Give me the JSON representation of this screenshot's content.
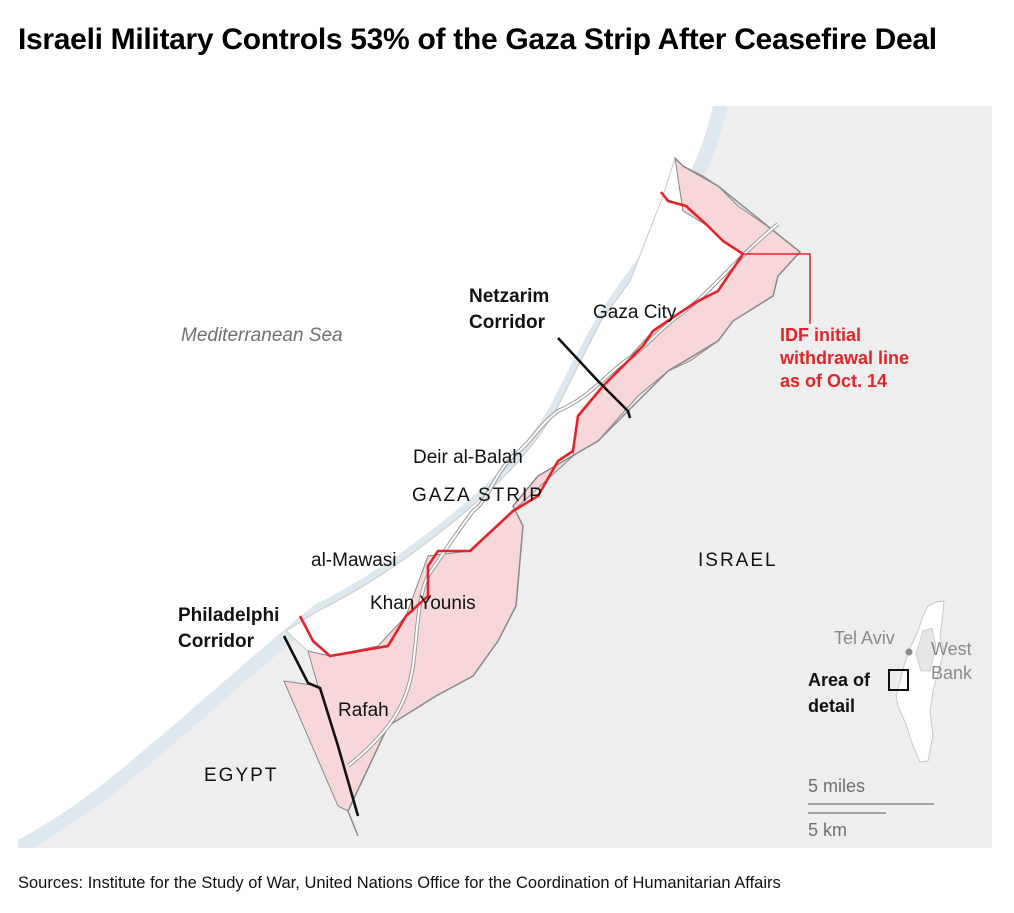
{
  "title": "Israeli Military Controls 53% of the Gaza Strip After Ceasefire Deal",
  "sources": "Sources: Institute for the Study of War, United Nations Office for the Coordination of Humanitarian Affairs",
  "labels": {
    "sea": "Mediterranean Sea",
    "netzarim_1": "Netzarim",
    "netzarim_2": "Corridor",
    "gaza_city": "Gaza City",
    "deir_al_balah": "Deir al-Balah",
    "gaza_strip": "GAZA STRIP",
    "al_mawasi": "al-Mawasi",
    "khan_younis": "Khan Younis",
    "philadelphi_1": "Philadelphi",
    "philadelphi_2": "Corridor",
    "rafah": "Rafah",
    "israel": "ISRAEL",
    "egypt": "EGYPT",
    "idf_1": "IDF initial",
    "idf_2": "withdrawal line",
    "idf_3": "as of Oct. 14"
  },
  "inset": {
    "tel_aviv": "Tel Aviv",
    "west_1": "West",
    "west_2": "Bank",
    "area_1": "Area of",
    "area_2": "detail"
  },
  "scale": {
    "miles": "5 miles",
    "km": "5 km"
  },
  "colors": {
    "land": "#eeeeee",
    "sea": "#ffffff",
    "coast_band": "#dde7ee",
    "gaza_fill": "#ffffff",
    "idf_zone_fill": "#f8d7da",
    "idf_line": "#e3242b",
    "corridor_line": "#111111",
    "border": "#8a8a8a"
  }
}
